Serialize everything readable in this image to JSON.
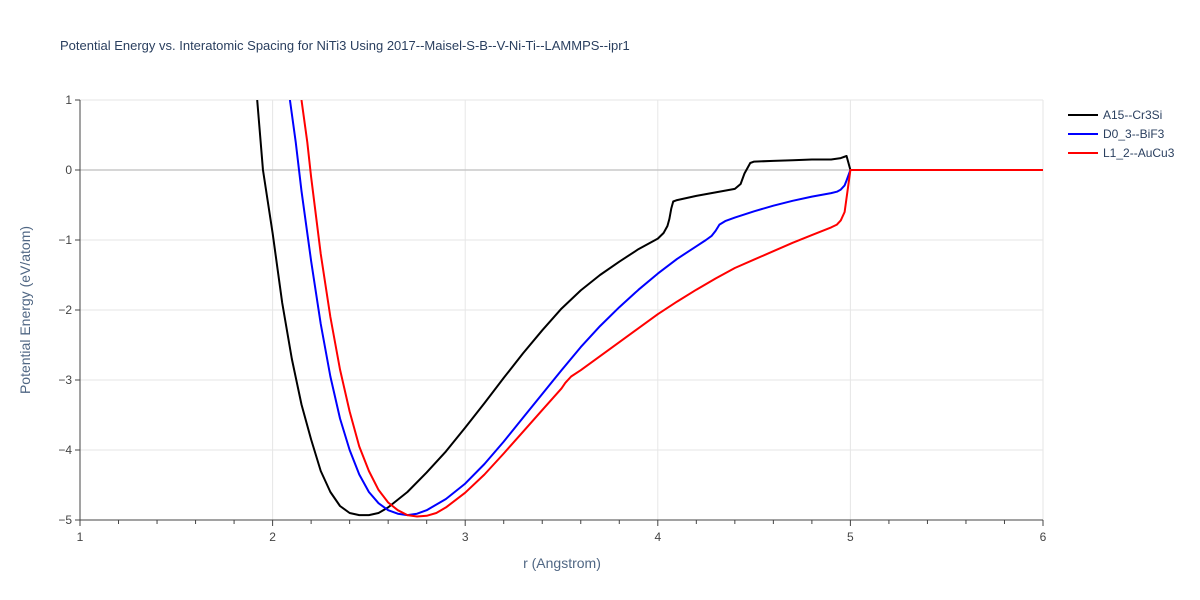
{
  "chart_data": {
    "type": "line",
    "title": "Potential Energy vs. Interatomic Spacing for NiTi3 Using 2017--Maisel-S-B--V-Ni-Ti--LAMMPS--ipr1",
    "xlabel": "r (Angstrom)",
    "ylabel": "Potential Energy (eV/atom)",
    "xlim": [
      1,
      6
    ],
    "ylim": [
      -5,
      1
    ],
    "xticks": [
      "1",
      "2",
      "3",
      "4",
      "5",
      "6"
    ],
    "yticks": [
      "1",
      "0",
      "−1",
      "−2",
      "−3",
      "−4",
      "−5"
    ],
    "grid": true,
    "legend_position": "top-right",
    "series": [
      {
        "name": "A15--Cr3Si",
        "color": "#000000",
        "x": [
          1.92,
          1.95,
          2.0,
          2.05,
          2.1,
          2.15,
          2.2,
          2.25,
          2.3,
          2.35,
          2.4,
          2.45,
          2.5,
          2.55,
          2.6,
          2.7,
          2.8,
          2.9,
          3.0,
          3.1,
          3.2,
          3.3,
          3.4,
          3.5,
          3.6,
          3.7,
          3.8,
          3.9,
          4.0,
          4.03,
          4.05,
          4.06,
          4.07,
          4.08,
          4.1,
          4.2,
          4.3,
          4.4,
          4.43,
          4.45,
          4.47,
          4.48,
          4.5,
          4.6,
          4.7,
          4.8,
          4.9,
          4.95,
          4.98,
          5.0,
          5.5,
          6.0
        ],
        "y": [
          1.0,
          0.0,
          -0.9,
          -1.9,
          -2.7,
          -3.35,
          -3.85,
          -4.3,
          -4.6,
          -4.8,
          -4.9,
          -4.93,
          -4.93,
          -4.9,
          -4.82,
          -4.6,
          -4.32,
          -4.02,
          -3.68,
          -3.33,
          -2.97,
          -2.62,
          -2.29,
          -1.98,
          -1.72,
          -1.5,
          -1.31,
          -1.13,
          -0.98,
          -0.9,
          -0.8,
          -0.7,
          -0.55,
          -0.45,
          -0.43,
          -0.37,
          -0.32,
          -0.27,
          -0.2,
          -0.05,
          0.05,
          0.1,
          0.12,
          0.13,
          0.14,
          0.15,
          0.15,
          0.17,
          0.2,
          0.0,
          0.0,
          0.0
        ]
      },
      {
        "name": "D0_3--BiF3",
        "color": "#0000ff",
        "x": [
          2.09,
          2.12,
          2.15,
          2.2,
          2.25,
          2.3,
          2.35,
          2.4,
          2.45,
          2.5,
          2.55,
          2.6,
          2.65,
          2.7,
          2.75,
          2.8,
          2.9,
          3.0,
          3.1,
          3.2,
          3.3,
          3.4,
          3.5,
          3.6,
          3.7,
          3.8,
          3.9,
          4.0,
          4.1,
          4.2,
          4.25,
          4.28,
          4.3,
          4.32,
          4.35,
          4.4,
          4.5,
          4.6,
          4.7,
          4.8,
          4.9,
          4.93,
          4.95,
          4.97,
          4.98,
          5.0,
          5.5,
          6.0
        ],
        "y": [
          1.0,
          0.4,
          -0.3,
          -1.3,
          -2.2,
          -2.95,
          -3.55,
          -4.0,
          -4.35,
          -4.6,
          -4.76,
          -4.86,
          -4.91,
          -4.93,
          -4.91,
          -4.86,
          -4.7,
          -4.48,
          -4.2,
          -3.88,
          -3.54,
          -3.2,
          -2.86,
          -2.53,
          -2.23,
          -1.96,
          -1.71,
          -1.48,
          -1.27,
          -1.09,
          -1.0,
          -0.94,
          -0.87,
          -0.78,
          -0.73,
          -0.68,
          -0.59,
          -0.51,
          -0.44,
          -0.38,
          -0.33,
          -0.31,
          -0.28,
          -0.22,
          -0.15,
          0.0,
          0.0,
          0.0
        ]
      },
      {
        "name": "L1_2--AuCu3",
        "color": "#ff0000",
        "x": [
          2.15,
          2.18,
          2.2,
          2.25,
          2.3,
          2.35,
          2.4,
          2.45,
          2.5,
          2.55,
          2.6,
          2.65,
          2.7,
          2.75,
          2.8,
          2.85,
          2.9,
          3.0,
          3.1,
          3.2,
          3.3,
          3.4,
          3.5,
          3.52,
          3.55,
          3.6,
          3.7,
          3.8,
          3.9,
          4.0,
          4.1,
          4.2,
          4.3,
          4.4,
          4.5,
          4.6,
          4.7,
          4.8,
          4.9,
          4.93,
          4.95,
          4.97,
          4.98,
          5.0,
          5.5,
          6.0
        ],
        "y": [
          1.0,
          0.4,
          -0.1,
          -1.2,
          -2.1,
          -2.85,
          -3.45,
          -3.95,
          -4.3,
          -4.57,
          -4.75,
          -4.86,
          -4.93,
          -4.95,
          -4.94,
          -4.9,
          -4.82,
          -4.61,
          -4.35,
          -4.05,
          -3.74,
          -3.43,
          -3.12,
          -3.04,
          -2.95,
          -2.86,
          -2.66,
          -2.46,
          -2.26,
          -2.06,
          -1.88,
          -1.71,
          -1.55,
          -1.4,
          -1.28,
          -1.16,
          -1.04,
          -0.93,
          -0.82,
          -0.78,
          -0.72,
          -0.6,
          -0.4,
          0.0,
          0.0,
          0.0
        ]
      }
    ]
  }
}
